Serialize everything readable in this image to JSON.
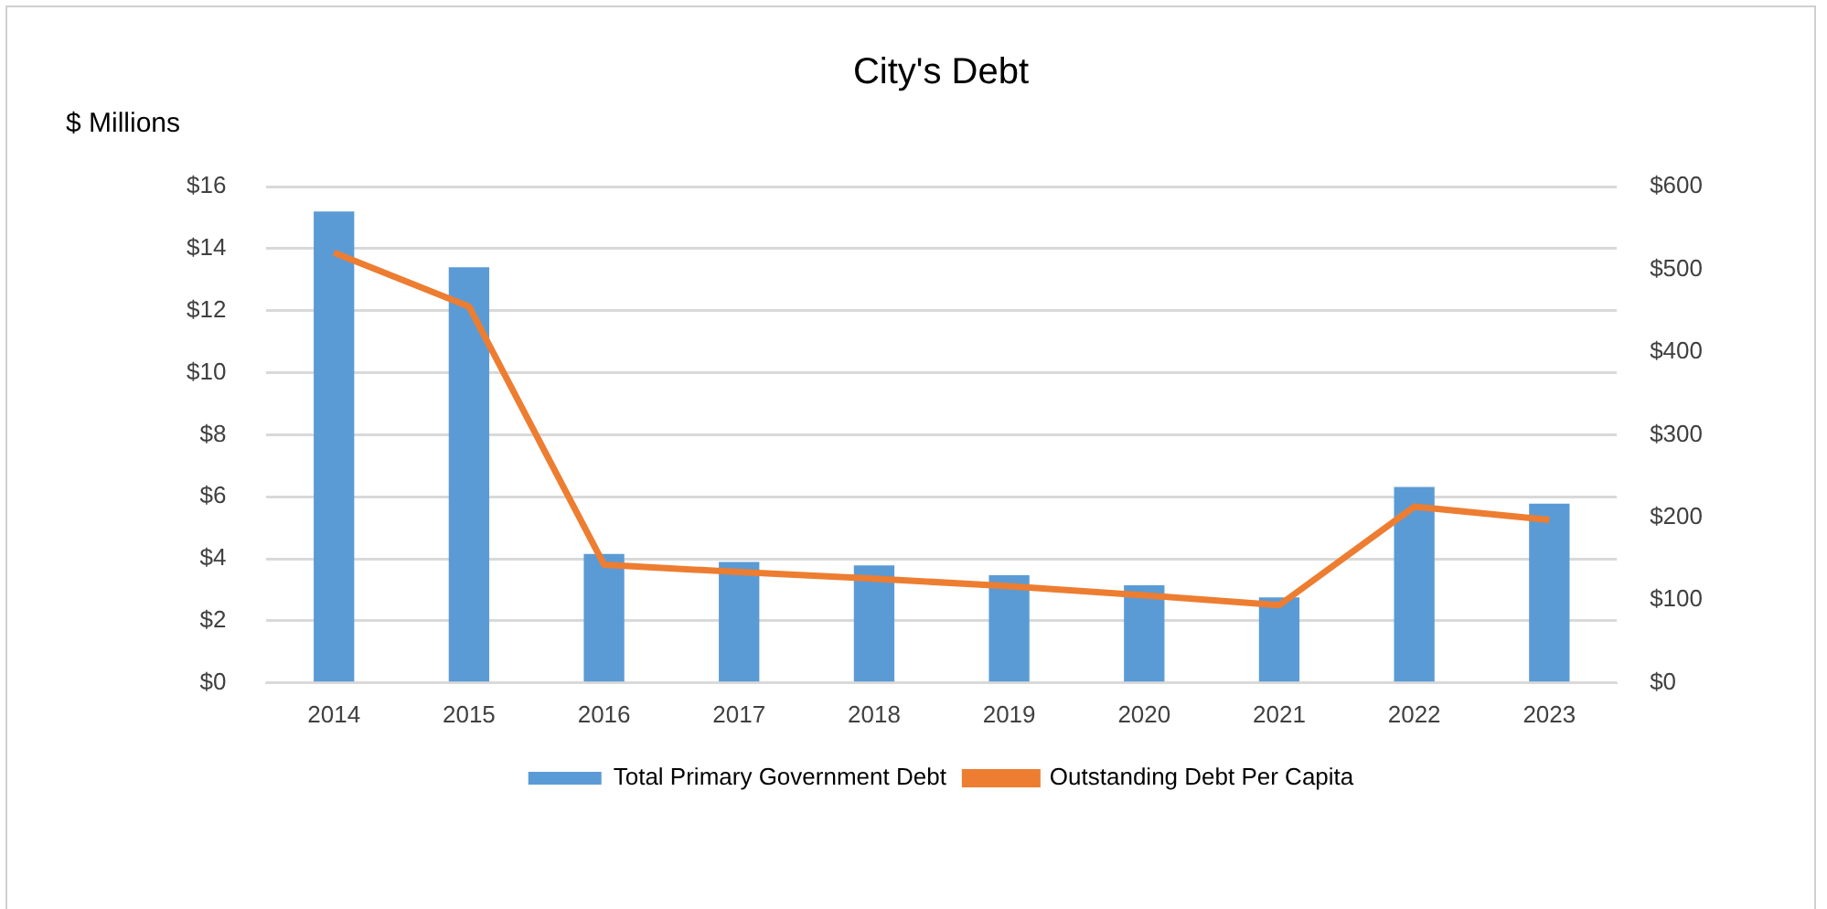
{
  "chart_data": {
    "type": "bar",
    "title": "City's Debt",
    "ylabel": "$ Millions",
    "categories": [
      "2014",
      "2015",
      "2016",
      "2017",
      "2018",
      "2019",
      "2020",
      "2021",
      "2022",
      "2023"
    ],
    "series": [
      {
        "name": "Total Primary Government Debt",
        "color": "#5b9bd5",
        "values": [
          15.2,
          13.4,
          4.16,
          3.9,
          3.79,
          3.47,
          3.15,
          2.76,
          6.32,
          5.78
        ]
      },
      {
        "name": "Outstanding Debt Per Capita",
        "type": "line",
        "axis": "y2",
        "color": "#ed7d31",
        "marker": "none",
        "values": [
          520,
          455,
          143,
          134,
          126,
          117,
          106,
          94,
          213,
          197
        ]
      }
    ],
    "ylim": [
      0,
      16
    ],
    "yticks": [
      {
        "value": 0,
        "label": "$0"
      },
      {
        "value": 2,
        "label": "$2"
      },
      {
        "value": 4,
        "label": "$4"
      },
      {
        "value": 6,
        "label": "$6"
      },
      {
        "value": 8,
        "label": "$8"
      },
      {
        "value": 10,
        "label": "$10"
      },
      {
        "value": 12,
        "label": "$12"
      },
      {
        "value": 14,
        "label": "$14"
      },
      {
        "value": 16,
        "label": "$16"
      }
    ],
    "y2lim": [
      0,
      600
    ],
    "y2ticks": [
      {
        "value": 0,
        "label": "$0"
      },
      {
        "value": 100,
        "label": "$100"
      },
      {
        "value": 200,
        "label": "$200"
      },
      {
        "value": 300,
        "label": "$300"
      },
      {
        "value": 400,
        "label": "$400"
      },
      {
        "value": 500,
        "label": "$500"
      },
      {
        "value": 600,
        "label": "$600"
      }
    ],
    "grid": "y",
    "legend": "bottom"
  }
}
